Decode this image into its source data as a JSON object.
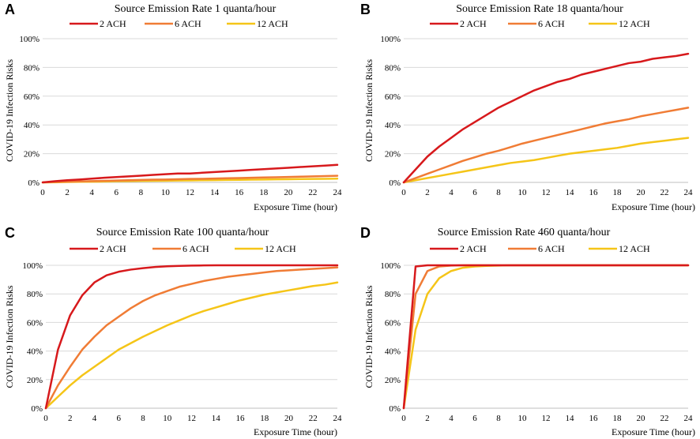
{
  "figure": {
    "x_axis_label": "Exposure Time (hour)",
    "y_axis_label": "COVID-19 Infection Risks"
  },
  "colors": {
    "2 ACH": "#d7191c",
    "6 ACH": "#f07c35",
    "12 ACH": "#f5c518"
  },
  "chart_data": [
    {
      "panel": "A",
      "type": "line",
      "title": "Source Emission Rate 1 quanta/hour",
      "xlabel": "Exposure Time (hour)",
      "ylabel": "COVID-19 Infection Risks",
      "x": [
        0,
        1,
        2,
        3,
        4,
        5,
        6,
        7,
        8,
        9,
        10,
        11,
        12,
        13,
        14,
        15,
        16,
        17,
        18,
        19,
        20,
        21,
        22,
        23,
        24
      ],
      "xticks": [
        "0",
        "2",
        "4",
        "6",
        "8",
        "10",
        "12",
        "14",
        "16",
        "18",
        "20",
        "22",
        "24"
      ],
      "xtick_values": [
        0,
        2,
        4,
        6,
        8,
        10,
        12,
        14,
        16,
        18,
        20,
        22,
        24
      ],
      "yticks": [
        "0%",
        "20%",
        "40%",
        "60%",
        "80%",
        "100%"
      ],
      "ytick_values": [
        0,
        20,
        40,
        60,
        80,
        100
      ],
      "xlim": [
        0,
        24
      ],
      "ylim": [
        0,
        100
      ],
      "series": [
        {
          "name": "2 ACH",
          "values": [
            0,
            0.8,
            1.5,
            2.0,
            2.6,
            3.2,
            3.7,
            4.2,
            4.7,
            5.2,
            5.7,
            6.2,
            6.2,
            6.7,
            7.2,
            7.7,
            8.2,
            8.7,
            9.2,
            9.7,
            10.2,
            10.7,
            11.2,
            11.7,
            12.2
          ]
        },
        {
          "name": "6 ACH",
          "values": [
            0,
            0.3,
            0.5,
            0.7,
            0.9,
            1.1,
            1.3,
            1.5,
            1.7,
            1.9,
            2.0,
            2.2,
            2.4,
            2.5,
            2.7,
            2.9,
            3.0,
            3.2,
            3.4,
            3.6,
            3.8,
            4.0,
            4.2,
            4.4,
            4.6
          ]
        },
        {
          "name": "12 ACH",
          "values": [
            0,
            0.1,
            0.3,
            0.4,
            0.5,
            0.6,
            0.8,
            0.9,
            1.0,
            1.1,
            1.2,
            1.3,
            1.4,
            1.5,
            1.6,
            1.7,
            1.8,
            1.9,
            2.0,
            2.1,
            2.2,
            2.3,
            2.4,
            2.5,
            2.6
          ]
        }
      ]
    },
    {
      "panel": "B",
      "type": "line",
      "title": "Source Emission Rate 18 quanta/hour",
      "xlabel": "Exposure Time (hour)",
      "ylabel": "COVID-19 Infection Risks",
      "x": [
        0,
        1,
        2,
        3,
        4,
        5,
        6,
        7,
        8,
        9,
        10,
        11,
        12,
        13,
        14,
        15,
        16,
        17,
        18,
        19,
        20,
        21,
        22,
        23,
        24
      ],
      "xticks": [
        "0",
        "2",
        "4",
        "6",
        "8",
        "10",
        "12",
        "14",
        "16",
        "18",
        "20",
        "22",
        "24"
      ],
      "xtick_values": [
        0,
        2,
        4,
        6,
        8,
        10,
        12,
        14,
        16,
        18,
        20,
        22,
        24
      ],
      "yticks": [
        "0%",
        "20%",
        "40%",
        "60%",
        "80%",
        "100%"
      ],
      "ytick_values": [
        0,
        20,
        40,
        60,
        80,
        100
      ],
      "xlim": [
        0,
        24
      ],
      "ylim": [
        0,
        100
      ],
      "series": [
        {
          "name": "2 ACH",
          "values": [
            0,
            9,
            18,
            25,
            31,
            37,
            42,
            47,
            52,
            56,
            60,
            64,
            67,
            70,
            72,
            75,
            77,
            79,
            81,
            83,
            84,
            86,
            87,
            88,
            89.5
          ]
        },
        {
          "name": "6 ACH",
          "values": [
            0,
            3,
            6,
            9,
            12,
            15,
            17.5,
            20,
            22,
            24.5,
            27,
            29,
            31,
            33,
            35,
            37,
            39,
            41,
            42.5,
            44,
            46,
            47.5,
            49,
            50.5,
            52
          ]
        },
        {
          "name": "12 ACH",
          "values": [
            0,
            1.5,
            3,
            4.5,
            6,
            7.5,
            9,
            10.5,
            12,
            13.5,
            14.5,
            15.5,
            17,
            18.5,
            20,
            21,
            22,
            23,
            24,
            25.5,
            27,
            28,
            29,
            30,
            31
          ]
        }
      ]
    },
    {
      "panel": "C",
      "type": "line",
      "title": "Source Emission Rate 100 quanta/hour",
      "xlabel": "Exposure Time (hour)",
      "ylabel": "COVID-19 Infection Risks",
      "x": [
        0,
        1,
        2,
        3,
        4,
        5,
        6,
        7,
        8,
        9,
        10,
        11,
        12,
        13,
        14,
        15,
        16,
        17,
        18,
        19,
        20,
        21,
        22,
        23,
        24
      ],
      "xticks": [
        "0",
        "2",
        "4",
        "6",
        "8",
        "10",
        "12",
        "14",
        "16",
        "18",
        "20",
        "22",
        "24"
      ],
      "xtick_values": [
        0,
        2,
        4,
        6,
        8,
        10,
        12,
        14,
        16,
        18,
        20,
        22,
        24
      ],
      "yticks": [
        "0%",
        "20%",
        "40%",
        "60%",
        "80%",
        "100%"
      ],
      "ytick_values": [
        0,
        20,
        40,
        60,
        80,
        100
      ],
      "xlim": [
        0,
        24
      ],
      "ylim": [
        0,
        100
      ],
      "series": [
        {
          "name": "2 ACH",
          "values": [
            0,
            41,
            65,
            79,
            88,
            93,
            95.5,
            97,
            98,
            98.8,
            99.3,
            99.6,
            99.8,
            99.9,
            100,
            100,
            100,
            100,
            100,
            100,
            100,
            100,
            100,
            100,
            100
          ]
        },
        {
          "name": "6 ACH",
          "values": [
            0,
            16,
            29,
            41,
            50,
            58,
            64,
            70,
            75,
            79,
            82,
            85,
            87,
            89,
            90.5,
            92,
            93,
            94,
            95,
            96,
            96.5,
            97,
            97.5,
            98,
            98.5
          ]
        },
        {
          "name": "12 ACH",
          "values": [
            0,
            8,
            16,
            23,
            29,
            35,
            41,
            45.5,
            50,
            54,
            58,
            61.5,
            65,
            68,
            70.5,
            73,
            75.5,
            77.5,
            79.5,
            81,
            82.5,
            84,
            85.5,
            86.5,
            88
          ]
        }
      ]
    },
    {
      "panel": "D",
      "type": "line",
      "title": "Source Emission Rate 460 quanta/hour",
      "xlabel": "Exposure Time (hour)",
      "ylabel": "COVID-19 Infection Risks",
      "x": [
        0,
        1,
        2,
        3,
        4,
        5,
        6,
        7,
        8,
        9,
        10,
        11,
        12,
        13,
        14,
        15,
        16,
        17,
        18,
        19,
        20,
        21,
        22,
        23,
        24
      ],
      "xticks": [
        "0",
        "2",
        "4",
        "6",
        "8",
        "10",
        "12",
        "14",
        "16",
        "18",
        "20",
        "22",
        "24"
      ],
      "xtick_values": [
        0,
        2,
        4,
        6,
        8,
        10,
        12,
        14,
        16,
        18,
        20,
        22,
        24
      ],
      "yticks": [
        "0%",
        "20%",
        "40%",
        "60%",
        "80%",
        "100%"
      ],
      "ytick_values": [
        0,
        20,
        40,
        60,
        80,
        100
      ],
      "xlim": [
        0,
        24
      ],
      "ylim": [
        0,
        100
      ],
      "series": [
        {
          "name": "2 ACH",
          "values": [
            0,
            99.2,
            100,
            100,
            100,
            100,
            100,
            100,
            100,
            100,
            100,
            100,
            100,
            100,
            100,
            100,
            100,
            100,
            100,
            100,
            100,
            100,
            100,
            100,
            100
          ]
        },
        {
          "name": "6 ACH",
          "values": [
            0,
            80,
            96,
            99.2,
            99.8,
            100,
            100,
            100,
            100,
            100,
            100,
            100,
            100,
            100,
            100,
            100,
            100,
            100,
            100,
            100,
            100,
            100,
            100,
            100,
            100
          ]
        },
        {
          "name": "12 ACH",
          "values": [
            0,
            55,
            80,
            91,
            96,
            98.3,
            99.2,
            99.6,
            99.8,
            100,
            100,
            100,
            100,
            100,
            100,
            100,
            100,
            100,
            100,
            100,
            100,
            100,
            100,
            100,
            100
          ]
        }
      ]
    }
  ]
}
